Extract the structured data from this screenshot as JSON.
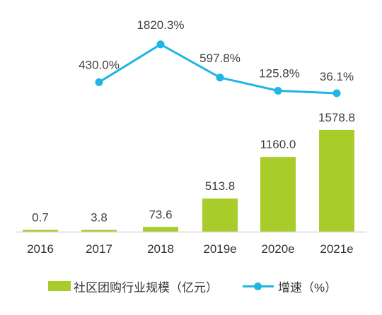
{
  "chart_data": {
    "type": "bar",
    "categories": [
      "2016",
      "2017",
      "2018",
      "2019e",
      "2020e",
      "2021e"
    ],
    "series": [
      {
        "name": "社区团购行业规模（亿元）",
        "kind": "bar",
        "values": [
          0.7,
          3.8,
          73.6,
          513.8,
          1160.0,
          1578.8
        ],
        "labels": [
          "0.7",
          "3.8",
          "73.6",
          "513.8",
          "1160.0",
          "1578.8"
        ],
        "color": "#a8cc2a"
      },
      {
        "name": "增速（%）",
        "kind": "line",
        "values": [
          null,
          430.0,
          1820.3,
          597.8,
          125.8,
          36.1
        ],
        "labels": [
          "",
          "430.0%",
          "1820.3%",
          "597.8%",
          "125.8%",
          "36.1%"
        ],
        "color": "#1fb6e3"
      }
    ],
    "grid": false,
    "legend_position": "bottom"
  },
  "legend": {
    "bar_label": "社区团购行业规模（亿元）",
    "line_label": "增速（%）"
  },
  "colors": {
    "axis": "#d9d9d9"
  }
}
